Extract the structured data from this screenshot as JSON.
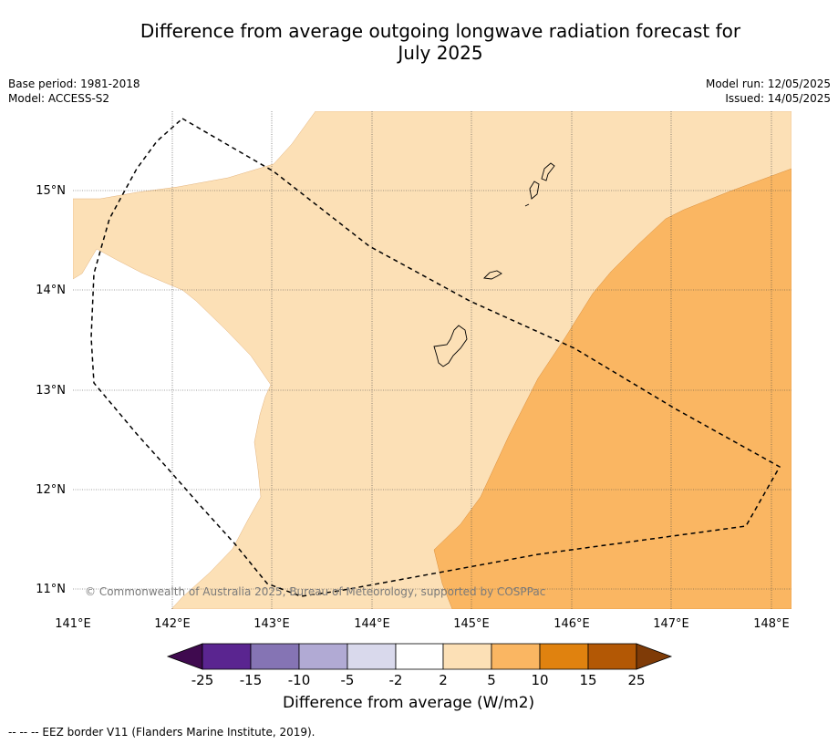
{
  "title": {
    "line1": "Difference from average outgoing longwave radiation forecast for",
    "line2": "July 2025"
  },
  "meta": {
    "base_period": "Base period: 1981-2018",
    "model": "Model: ACCESS-S2",
    "model_run": "Model run: 12/05/2025",
    "issued": "Issued: 14/05/2025"
  },
  "map": {
    "lon_ticks": [
      "141°E",
      "142°E",
      "143°E",
      "144°E",
      "145°E",
      "146°E",
      "147°E",
      "148°E"
    ],
    "lat_ticks": [
      "15°N",
      "14°N",
      "13°N",
      "12°N",
      "11°N"
    ],
    "copyright": "© Commonwealth of Australia 2025, Bureau of Meteorology, supported by COSPPac",
    "fill_colors": {
      "light_orange": "#fce0b6",
      "medium_orange": "#fab662"
    },
    "borders": "eez-dashed-line"
  },
  "colorbar": {
    "labels": [
      "-25",
      "-15",
      "-10",
      "-5",
      "-2",
      "2",
      "5",
      "10",
      "15",
      "25"
    ],
    "colors": [
      "#3f0a4f",
      "#5a2590",
      "#8574b4",
      "#b1aad4",
      "#d9d9ec",
      "#ffffff",
      "#fce0b6",
      "#fab662",
      "#e0820f",
      "#b35805",
      "#7f3b07"
    ],
    "title": "Difference from average (W/m2)"
  },
  "footnote": "--  --  -- EEZ border V11 (Flanders Marine Institute, 2019)."
}
